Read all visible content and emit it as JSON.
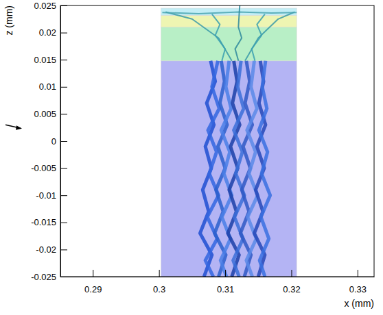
{
  "chart_data": {
    "type": "line",
    "xlabel": "x (mm)",
    "ylabel": "z (mm)",
    "xlim": [
      0.2851,
      0.3325
    ],
    "ylim": [
      -0.025,
      0.025
    ],
    "xticks": [
      0.29,
      0.3,
      0.31,
      0.32,
      0.33
    ],
    "yticks": [
      -0.025,
      -0.02,
      -0.015,
      -0.01,
      -0.005,
      0,
      0.005,
      0.01,
      0.015,
      0.02,
      0.025
    ],
    "regions": [
      {
        "x0": 0.3003,
        "x1": 0.3208,
        "z0": -0.025,
        "z1": 0.0148,
        "color": "#b4b4f4"
      },
      {
        "x0": 0.3003,
        "x1": 0.3208,
        "z0": 0.0148,
        "z1": 0.021,
        "color": "#b8efc6"
      },
      {
        "x0": 0.3003,
        "x1": 0.3208,
        "z0": 0.021,
        "z1": 0.0232,
        "color": "#eef5b2"
      },
      {
        "x0": 0.3003,
        "x1": 0.3208,
        "z0": 0.0232,
        "z1": 0.0245,
        "color": "#c2eef6"
      }
    ],
    "series": [
      {
        "color": "#1f4fd1",
        "x": [
          0.3068,
          0.308,
          0.3062,
          0.3075,
          0.3066,
          0.3079,
          0.307,
          0.3083,
          0.3072,
          0.3085,
          0.3078
        ],
        "values": [
          -0.025,
          -0.021,
          -0.017,
          -0.013,
          -0.009,
          -0.005,
          -0.001,
          0.003,
          0.007,
          0.011,
          0.0148
        ]
      },
      {
        "color": "#3366e0",
        "x": [
          0.3082,
          0.307,
          0.3088,
          0.3073,
          0.309,
          0.3076,
          0.3087,
          0.3074,
          0.3091,
          0.308,
          0.3089
        ],
        "values": [
          -0.025,
          -0.022,
          -0.018,
          -0.014,
          -0.01,
          -0.006,
          -0.002,
          0.002,
          0.006,
          0.01,
          0.0148
        ]
      },
      {
        "color": "#2a5fcc",
        "x": [
          0.309,
          0.3101,
          0.3084,
          0.3097,
          0.3086,
          0.31,
          0.3089,
          0.3103,
          0.3092,
          0.3099,
          0.3094
        ],
        "values": [
          -0.025,
          -0.021,
          -0.017,
          -0.013,
          -0.009,
          -0.005,
          -0.001,
          0.003,
          0.007,
          0.011,
          0.0148
        ]
      },
      {
        "color": "#4a7fe6",
        "x": [
          0.3102,
          0.3093,
          0.3108,
          0.3095,
          0.311,
          0.3098,
          0.3107,
          0.3094,
          0.3109,
          0.3101,
          0.3106
        ],
        "values": [
          -0.025,
          -0.022,
          -0.018,
          -0.014,
          -0.01,
          -0.006,
          -0.002,
          0.002,
          0.006,
          0.01,
          0.0148
        ]
      },
      {
        "color": "#1b3fa8",
        "x": [
          0.311,
          0.3121,
          0.3104,
          0.3117,
          0.3106,
          0.3119,
          0.3108,
          0.3122,
          0.3111,
          0.3118,
          0.3113
        ],
        "values": [
          -0.025,
          -0.021,
          -0.017,
          -0.013,
          -0.009,
          -0.005,
          -0.001,
          0.003,
          0.007,
          0.011,
          0.0148
        ]
      },
      {
        "color": "#3b6fd8",
        "x": [
          0.3121,
          0.3112,
          0.3127,
          0.3114,
          0.3129,
          0.3116,
          0.3126,
          0.3113,
          0.3128,
          0.3119,
          0.3124
        ],
        "values": [
          -0.025,
          -0.022,
          -0.018,
          -0.014,
          -0.01,
          -0.006,
          -0.002,
          0.002,
          0.006,
          0.01,
          0.0148
        ]
      },
      {
        "color": "#2f58c4",
        "x": [
          0.3129,
          0.3139,
          0.3123,
          0.3136,
          0.3125,
          0.3138,
          0.3127,
          0.3141,
          0.313,
          0.3137,
          0.3132
        ],
        "values": [
          -0.025,
          -0.021,
          -0.017,
          -0.013,
          -0.009,
          -0.005,
          -0.001,
          0.003,
          0.007,
          0.011,
          0.0148
        ]
      },
      {
        "color": "#5a8ae8",
        "x": [
          0.3141,
          0.3132,
          0.3147,
          0.3134,
          0.3149,
          0.3136,
          0.3146,
          0.3133,
          0.3148,
          0.3139,
          0.3144
        ],
        "values": [
          -0.025,
          -0.022,
          -0.018,
          -0.014,
          -0.01,
          -0.006,
          -0.002,
          0.002,
          0.006,
          0.01,
          0.0148
        ]
      },
      {
        "color": "#2448b8",
        "x": [
          0.315,
          0.316,
          0.3144,
          0.3157,
          0.3146,
          0.3159,
          0.3148,
          0.3161,
          0.3151,
          0.3158,
          0.3153
        ],
        "values": [
          -0.025,
          -0.021,
          -0.017,
          -0.013,
          -0.009,
          -0.005,
          -0.001,
          0.003,
          0.007,
          0.011,
          0.0148
        ]
      },
      {
        "color": "#3a70e0",
        "x": [
          0.316,
          0.3152,
          0.3166,
          0.3154,
          0.3168,
          0.3155,
          0.3164,
          0.3151,
          0.3163,
          0.3156,
          0.3161
        ],
        "values": [
          -0.025,
          -0.022,
          -0.018,
          -0.014,
          -0.01,
          -0.006,
          -0.002,
          0.002,
          0.006,
          0.01,
          0.0148
        ]
      },
      {
        "color": "#3a9aa8",
        "x": [
          0.311,
          0.309,
          0.305,
          0.301
        ],
        "values": [
          0.0148,
          0.019,
          0.0225,
          0.0238
        ]
      },
      {
        "color": "#3a9aa8",
        "x": [
          0.313,
          0.315,
          0.318,
          0.3205
        ],
        "values": [
          0.0148,
          0.019,
          0.0225,
          0.0238
        ]
      },
      {
        "color": "#4aa5b0",
        "x": [
          0.3005,
          0.306,
          0.312,
          0.317,
          0.3208
        ],
        "values": [
          0.0237,
          0.0235,
          0.0238,
          0.0236,
          0.0237
        ]
      },
      {
        "color": "#2f8a9c",
        "x": [
          0.312,
          0.3115,
          0.3125,
          0.312,
          0.3122
        ],
        "values": [
          0.0148,
          0.017,
          0.019,
          0.021,
          0.025
        ]
      },
      {
        "color": "#3aa0b0",
        "x": [
          0.3095,
          0.31,
          0.3085,
          0.3092,
          0.308
        ],
        "values": [
          0.0148,
          0.017,
          0.0195,
          0.0215,
          0.0234
        ]
      },
      {
        "color": "#3aa0b0",
        "x": [
          0.3145,
          0.314,
          0.3155,
          0.3148,
          0.316
        ],
        "values": [
          0.0148,
          0.017,
          0.0195,
          0.0215,
          0.0234
        ]
      }
    ]
  }
}
